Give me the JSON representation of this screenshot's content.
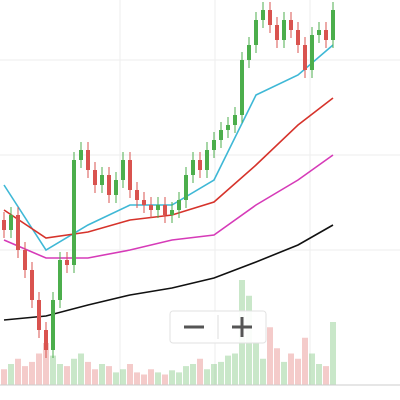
{
  "chart_data": {
    "type": "candlestick",
    "ylim": [
      0,
      400
    ],
    "up_color": "#4cae4c",
    "down_color": "#d9534f",
    "grid": true,
    "candles": {
      "open": [
        180,
        170,
        185,
        150,
        130,
        100,
        70,
        50,
        100,
        140,
        135,
        240,
        250,
        230,
        215,
        225,
        205,
        220,
        240,
        210,
        200,
        195,
        190,
        195,
        185,
        190,
        200,
        225,
        240,
        230,
        250,
        260,
        270,
        275,
        285,
        340,
        355,
        380,
        390,
        375,
        360,
        380,
        370,
        355,
        330,
        365,
        370,
        360
      ],
      "high": [
        188,
        193,
        193,
        158,
        138,
        108,
        78,
        108,
        148,
        148,
        248,
        258,
        258,
        238,
        233,
        233,
        228,
        248,
        248,
        218,
        208,
        203,
        203,
        203,
        198,
        208,
        233,
        248,
        248,
        258,
        268,
        278,
        283,
        293,
        348,
        363,
        388,
        398,
        398,
        383,
        388,
        388,
        378,
        363,
        373,
        378,
        378,
        398
      ],
      "low": [
        162,
        162,
        142,
        122,
        92,
        62,
        42,
        42,
        92,
        127,
        127,
        232,
        222,
        207,
        207,
        197,
        197,
        212,
        202,
        192,
        187,
        182,
        182,
        177,
        177,
        182,
        192,
        217,
        222,
        222,
        242,
        252,
        262,
        267,
        277,
        332,
        347,
        372,
        367,
        352,
        352,
        362,
        347,
        322,
        322,
        357,
        352,
        352
      ],
      "close": [
        170,
        185,
        150,
        130,
        100,
        70,
        50,
        100,
        140,
        135,
        240,
        250,
        230,
        215,
        225,
        205,
        220,
        240,
        210,
        200,
        195,
        190,
        195,
        185,
        190,
        200,
        225,
        240,
        230,
        250,
        260,
        270,
        275,
        285,
        340,
        355,
        380,
        390,
        375,
        360,
        380,
        370,
        355,
        330,
        365,
        370,
        360,
        390
      ]
    },
    "volume": {
      "ylim": [
        0,
        100
      ],
      "values": [
        15,
        20,
        25,
        18,
        22,
        30,
        40,
        28,
        20,
        18,
        25,
        30,
        22,
        15,
        20,
        18,
        12,
        15,
        20,
        12,
        10,
        15,
        12,
        10,
        14,
        12,
        18,
        20,
        25,
        15,
        20,
        22,
        28,
        30,
        100,
        85,
        40,
        25,
        55,
        35,
        22,
        30,
        25,
        45,
        30,
        20,
        18,
        60
      ]
    },
    "series": [
      {
        "color": "#3fb8d6",
        "x": [
          0,
          6,
          12,
          18,
          24,
          30,
          36,
          42,
          47
        ],
        "values": [
          215,
          150,
          175,
          195,
          195,
          220,
          305,
          325,
          355
        ]
      },
      {
        "color": "#d6332b",
        "x": [
          0,
          6,
          12,
          18,
          24,
          30,
          36,
          42,
          47
        ],
        "values": [
          190,
          162,
          168,
          180,
          185,
          198,
          235,
          275,
          302
        ]
      },
      {
        "color": "#d63bb8",
        "x": [
          0,
          6,
          12,
          18,
          24,
          30,
          36,
          42,
          47
        ],
        "values": [
          160,
          142,
          142,
          150,
          160,
          165,
          195,
          220,
          245
        ]
      },
      {
        "color": "#111111",
        "x": [
          0,
          6,
          12,
          18,
          24,
          30,
          36,
          42,
          47
        ],
        "values": [
          80,
          84,
          95,
          105,
          112,
          122,
          138,
          155,
          175
        ]
      }
    ]
  }
}
